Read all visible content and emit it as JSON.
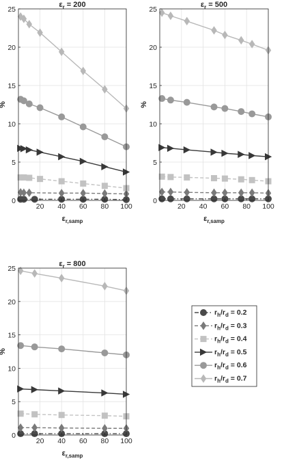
{
  "chart_data": [
    {
      "type": "line",
      "title": "ε_r = 200",
      "xlabel": "ε_r,samp",
      "ylabel": "%",
      "xlim": [
        0,
        100
      ],
      "ylim": [
        0,
        25
      ],
      "xticks": [
        20,
        40,
        60,
        80,
        100
      ],
      "yticks": [
        0,
        5,
        10,
        15,
        20,
        25
      ],
      "grid": true,
      "series": [
        {
          "name": "r_h/r_d = 0.2",
          "x": [
            2,
            5,
            15,
            40,
            60,
            80,
            100
          ],
          "y": [
            0.15,
            0.15,
            0.15,
            0.15,
            0.15,
            0.15,
            0.1
          ]
        },
        {
          "name": "r_h/r_d = 0.3",
          "x": [
            2,
            5,
            10,
            40,
            60,
            80,
            100
          ],
          "y": [
            1.05,
            1.0,
            1.0,
            0.95,
            0.95,
            0.9,
            0.85
          ]
        },
        {
          "name": "r_h/r_d = 0.4",
          "x": [
            2,
            5,
            10,
            20,
            40,
            60,
            80,
            100
          ],
          "y": [
            3.0,
            3.0,
            2.95,
            2.8,
            2.5,
            2.2,
            1.9,
            1.6
          ]
        },
        {
          "name": "r_h/r_d = 0.5",
          "x": [
            2,
            5,
            10,
            20,
            40,
            60,
            80,
            100
          ],
          "y": [
            6.8,
            6.75,
            6.6,
            6.3,
            5.7,
            5.1,
            4.4,
            3.7
          ]
        },
        {
          "name": "r_h/r_d = 0.6",
          "x": [
            2,
            5,
            10,
            20,
            40,
            60,
            80,
            100
          ],
          "y": [
            13.2,
            13.0,
            12.6,
            12.1,
            10.9,
            9.6,
            8.3,
            7.0
          ]
        },
        {
          "name": "r_h/r_d = 0.7",
          "x": [
            2,
            5,
            10,
            20,
            40,
            60,
            80,
            100
          ],
          "y": [
            24.0,
            23.7,
            23.0,
            21.9,
            19.4,
            16.9,
            14.5,
            12.0
          ]
        }
      ]
    },
    {
      "type": "line",
      "title": "ε_r = 500",
      "xlabel": "ε_r,samp",
      "ylabel": "%",
      "xlim": [
        0,
        100
      ],
      "ylim": [
        0,
        25
      ],
      "xticks": [
        20,
        40,
        60,
        80,
        100
      ],
      "yticks": [
        0,
        5,
        10,
        15,
        20,
        25
      ],
      "grid": true,
      "series": [
        {
          "name": "r_h/r_d = 0.2",
          "x": [
            2,
            10,
            25,
            50,
            60,
            75,
            85,
            100
          ],
          "y": [
            0.2,
            0.2,
            0.2,
            0.2,
            0.2,
            0.2,
            0.2,
            0.2
          ]
        },
        {
          "name": "r_h/r_d = 0.3",
          "x": [
            2,
            10,
            25,
            50,
            60,
            75,
            85,
            100
          ],
          "y": [
            1.1,
            1.1,
            1.05,
            1.0,
            1.0,
            1.0,
            1.0,
            0.95
          ]
        },
        {
          "name": "r_h/r_d = 0.4",
          "x": [
            2,
            10,
            25,
            50,
            60,
            75,
            85,
            100
          ],
          "y": [
            3.1,
            3.05,
            3.0,
            2.9,
            2.85,
            2.75,
            2.65,
            2.5
          ]
        },
        {
          "name": "r_h/r_d = 0.5",
          "x": [
            2,
            10,
            25,
            50,
            60,
            75,
            85,
            100
          ],
          "y": [
            6.9,
            6.8,
            6.6,
            6.3,
            6.15,
            6.0,
            5.85,
            5.7
          ]
        },
        {
          "name": "r_h/r_d = 0.6",
          "x": [
            2,
            10,
            25,
            50,
            60,
            75,
            85,
            100
          ],
          "y": [
            13.3,
            13.1,
            12.8,
            12.2,
            12.0,
            11.6,
            11.3,
            10.9
          ]
        },
        {
          "name": "r_h/r_d = 0.7",
          "x": [
            2,
            10,
            25,
            50,
            60,
            75,
            85,
            100
          ],
          "y": [
            24.5,
            24.1,
            23.4,
            22.2,
            21.6,
            20.9,
            20.4,
            19.6
          ]
        }
      ]
    },
    {
      "type": "line",
      "title": "ε_r = 800",
      "xlabel": "ε_r,samp",
      "ylabel": "%",
      "xlim": [
        0,
        100
      ],
      "ylim": [
        0,
        25
      ],
      "xticks": [
        20,
        40,
        60,
        80,
        100
      ],
      "yticks": [
        0,
        5,
        10,
        15,
        20,
        25
      ],
      "grid": true,
      "series": [
        {
          "name": "r_h/r_d = 0.2",
          "x": [
            2,
            15,
            40,
            80,
            100
          ],
          "y": [
            0.2,
            0.2,
            0.2,
            0.2,
            0.2
          ]
        },
        {
          "name": "r_h/r_d = 0.3",
          "x": [
            2,
            15,
            40,
            80,
            100
          ],
          "y": [
            1.1,
            1.1,
            1.05,
            1.0,
            1.0
          ]
        },
        {
          "name": "r_h/r_d = 0.4",
          "x": [
            2,
            15,
            40,
            80,
            100
          ],
          "y": [
            3.2,
            3.1,
            3.0,
            2.9,
            2.8
          ]
        },
        {
          "name": "r_h/r_d = 0.5",
          "x": [
            2,
            15,
            40,
            80,
            100
          ],
          "y": [
            6.9,
            6.8,
            6.6,
            6.3,
            6.1
          ]
        },
        {
          "name": "r_h/r_d = 0.6",
          "x": [
            2,
            15,
            40,
            80,
            100
          ],
          "y": [
            13.4,
            13.2,
            12.9,
            12.3,
            12.0
          ]
        },
        {
          "name": "r_h/r_d = 0.7",
          "x": [
            2,
            15,
            40,
            80,
            100
          ],
          "y": [
            24.6,
            24.2,
            23.5,
            22.3,
            21.6
          ]
        }
      ]
    }
  ],
  "legend": {
    "placement": "right of bottom panel",
    "entries": [
      {
        "prefix": "r",
        "sub1": "h",
        "mid": "/r",
        "sub2": "d",
        "suffix": " = 0.2",
        "marker": "circle",
        "color": "#4a4a4a",
        "dash": "dashdot"
      },
      {
        "prefix": "r",
        "sub1": "h",
        "mid": "/r",
        "sub2": "d",
        "suffix": " = 0.3",
        "marker": "diamond",
        "color": "#7a7a7a",
        "dash": "dashed"
      },
      {
        "prefix": "r",
        "sub1": "h",
        "mid": "/r",
        "sub2": "d",
        "suffix": " = 0.4",
        "marker": "square",
        "color": "#c2c2c2",
        "dash": "dashed"
      },
      {
        "prefix": "r",
        "sub1": "h",
        "mid": "/r",
        "sub2": "d",
        "suffix": " = 0.5",
        "marker": "triangle-right",
        "color": "#383838",
        "dash": "solid"
      },
      {
        "prefix": "r",
        "sub1": "h",
        "mid": "/r",
        "sub2": "d",
        "suffix": " = 0.6",
        "marker": "circle",
        "color": "#999999",
        "dash": "solid"
      },
      {
        "prefix": "r",
        "sub1": "h",
        "mid": "/r",
        "sub2": "d",
        "suffix": " = 0.7",
        "marker": "diamond",
        "color": "#b8b8b8",
        "dash": "solid"
      }
    ]
  },
  "colors": {
    "series": [
      "#4a4a4a",
      "#7a7a7a",
      "#c2c2c2",
      "#383838",
      "#999999",
      "#b8b8b8"
    ],
    "grid": "#e3e3e3",
    "axis": "#262626"
  }
}
